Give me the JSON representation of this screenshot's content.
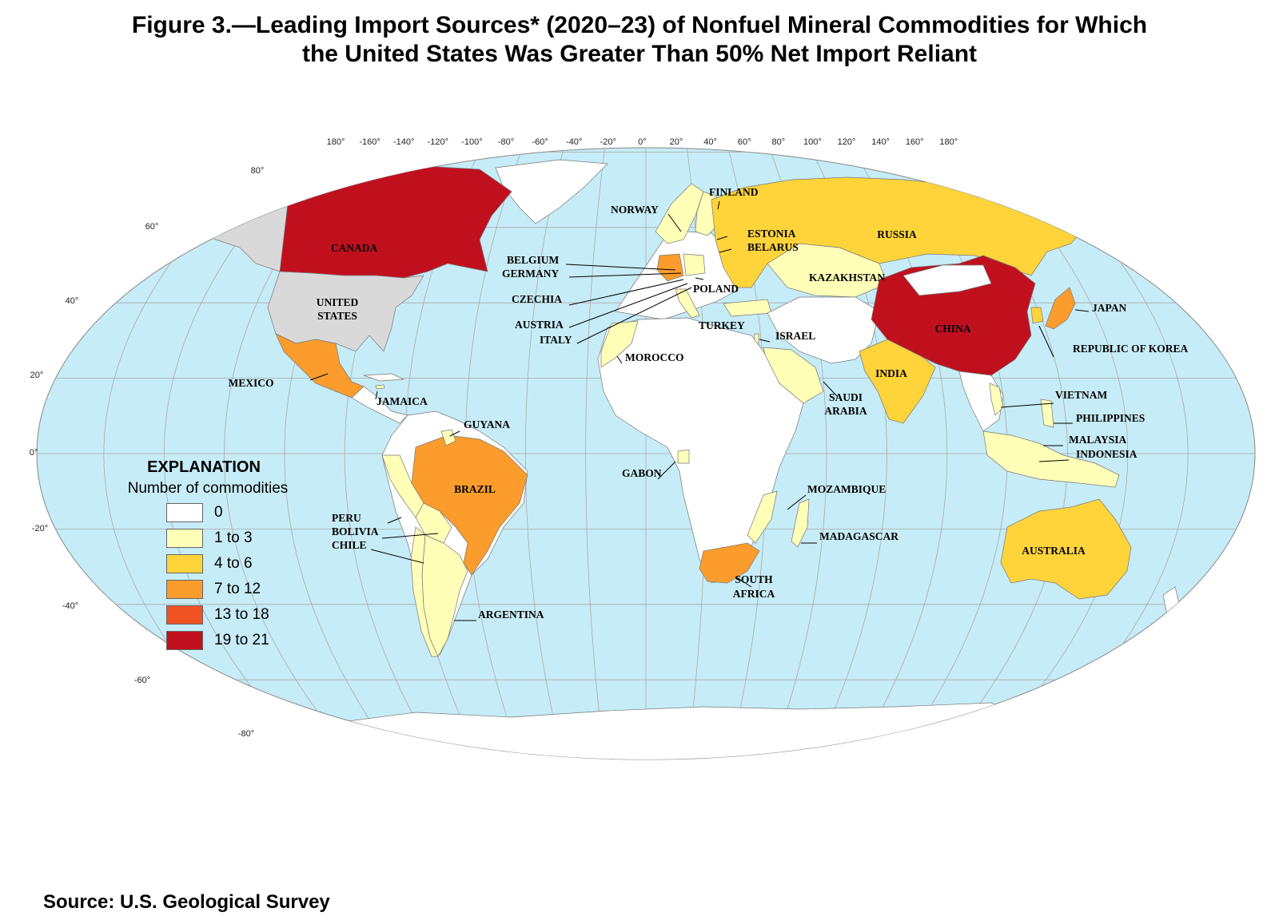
{
  "title_line1": "Figure 3.—Leading Import Sources* (2020–23) of Nonfuel Mineral Commodities for Which",
  "title_line2": "the United States Was Greater Than 50% Net Import Reliant",
  "source": "Source: U.S. Geological Survey",
  "colors": {
    "ocean": "#c6ecf7",
    "class_0": "#ffffff",
    "class_1_3": "#ffffb8",
    "class_4_6": "#ffd43b",
    "class_7_12": "#fb9c2c",
    "class_13_18": "#f05323",
    "class_19_21": "#c0101e",
    "united_states": "#d9d9d9"
  },
  "longitude_ticks": [
    "180°",
    "-160°",
    "-140°",
    "-120°",
    "-100°",
    "-80°",
    "-60°",
    "-40°",
    "-20°",
    "0°",
    "20°",
    "40°",
    "60°",
    "80°",
    "100°",
    "120°",
    "140°",
    "160°",
    "180°"
  ],
  "latitude_ticks": [
    "80°",
    "60°",
    "40°",
    "20°",
    "0°",
    "-20°",
    "-40°",
    "-60°",
    "-80°"
  ],
  "legend": {
    "heading": "EXPLANATION",
    "subheading": "Number of commodities",
    "items": [
      {
        "label": "0",
        "color": "#ffffff"
      },
      {
        "label": "1 to 3",
        "color": "#ffffb8"
      },
      {
        "label": "4 to 6",
        "color": "#ffd43b"
      },
      {
        "label": "7 to 12",
        "color": "#fb9c2c"
      },
      {
        "label": "13 to 18",
        "color": "#f05323"
      },
      {
        "label": "19 to 21",
        "color": "#c0101e"
      }
    ]
  },
  "country_labels": [
    {
      "name": "CANADA",
      "class": "19 to 21"
    },
    {
      "name": "CHINA",
      "class": "19 to 21"
    },
    {
      "name": "UNITED",
      "class": ""
    },
    {
      "name": "STATES",
      "class": ""
    },
    {
      "name": "MEXICO",
      "class": "7 to 12"
    },
    {
      "name": "BRAZIL",
      "class": "7 to 12"
    },
    {
      "name": "GERMANY",
      "class": "7 to 12"
    },
    {
      "name": "JAPAN",
      "class": "7 to 12"
    },
    {
      "name": "SOUTH",
      "class": "7 to 12"
    },
    {
      "name": "AFRICA",
      "class": "7 to 12"
    },
    {
      "name": "RUSSIA",
      "class": "4 to 6"
    },
    {
      "name": "INDIA",
      "class": "4 to 6"
    },
    {
      "name": "AUSTRALIA",
      "class": "4 to 6"
    },
    {
      "name": "NORWAY",
      "class": "1 to 3"
    },
    {
      "name": "FINLAND",
      "class": "1 to 3"
    },
    {
      "name": "ESTONIA",
      "class": "1 to 3"
    },
    {
      "name": "BELARUS",
      "class": "1 to 3"
    },
    {
      "name": "BELGIUM",
      "class": "1 to 3"
    },
    {
      "name": "POLAND",
      "class": "1 to 3"
    },
    {
      "name": "CZECHIA",
      "class": "1 to 3"
    },
    {
      "name": "AUSTRIA",
      "class": "1 to 3"
    },
    {
      "name": "ITALY",
      "class": "1 to 3"
    },
    {
      "name": "TURKEY",
      "class": "1 to 3"
    },
    {
      "name": "ISRAEL",
      "class": "1 to 3"
    },
    {
      "name": "KAZAKHSTAN",
      "class": "1 to 3"
    },
    {
      "name": "REPUBLIC OF KOREA",
      "class": "1 to 3"
    },
    {
      "name": "MOROCCO",
      "class": "1 to 3"
    },
    {
      "name": "SAUDI",
      "class": "1 to 3"
    },
    {
      "name": "ARABIA",
      "class": "1 to 3"
    },
    {
      "name": "VIETNAM",
      "class": "1 to 3"
    },
    {
      "name": "PHILIPPINES",
      "class": "1 to 3"
    },
    {
      "name": "MALAYSIA",
      "class": "1 to 3"
    },
    {
      "name": "INDONESIA",
      "class": "1 to 3"
    },
    {
      "name": "JAMAICA",
      "class": "1 to 3"
    },
    {
      "name": "GUYANA",
      "class": "1 to 3"
    },
    {
      "name": "GABON",
      "class": "1 to 3"
    },
    {
      "name": "MOZAMBIQUE",
      "class": "1 to 3"
    },
    {
      "name": "MADAGASCAR",
      "class": "1 to 3"
    },
    {
      "name": "PERU",
      "class": "1 to 3"
    },
    {
      "name": "BOLIVIA",
      "class": "1 to 3"
    },
    {
      "name": "CHILE",
      "class": "1 to 3"
    },
    {
      "name": "ARGENTINA",
      "class": "1 to 3"
    }
  ]
}
